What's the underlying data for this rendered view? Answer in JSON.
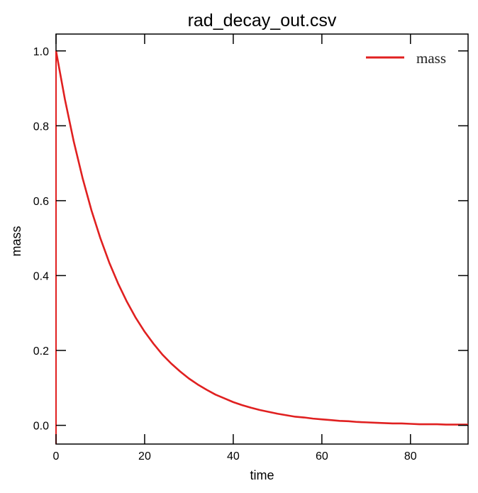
{
  "chart_data": {
    "type": "line",
    "title": "rad_decay_out.csv",
    "xlabel": "time",
    "ylabel": "mass",
    "xlim": [
      0,
      93
    ],
    "ylim": [
      -0.05,
      1.045
    ],
    "xticks": [
      0,
      20,
      40,
      60,
      80
    ],
    "yticks": [
      0.0,
      0.2,
      0.4,
      0.6,
      0.8,
      1.0
    ],
    "xtick_labels": [
      "0",
      "20",
      "40",
      "60",
      "80"
    ],
    "ytick_labels": [
      "0.0",
      "0.2",
      "0.4",
      "0.6",
      "0.8",
      "1.0"
    ],
    "grid": false,
    "legend": {
      "position": "top-right",
      "entries": [
        "mass"
      ]
    },
    "series": [
      {
        "name": "mass",
        "color": "#e02020",
        "x": [
          0,
          2,
          4,
          6,
          8,
          10,
          12,
          14,
          16,
          18,
          20,
          22,
          24,
          26,
          28,
          30,
          32,
          34,
          36,
          38,
          40,
          42,
          44,
          46,
          48,
          50,
          52,
          54,
          56,
          58,
          60,
          62,
          64,
          66,
          68,
          70,
          72,
          74,
          76,
          78,
          80,
          82,
          84,
          86,
          88,
          90,
          92,
          93
        ],
        "y": [
          1.0,
          0.871,
          0.758,
          0.66,
          0.574,
          0.5,
          0.435,
          0.379,
          0.33,
          0.287,
          0.25,
          0.218,
          0.189,
          0.165,
          0.144,
          0.125,
          0.109,
          0.095,
          0.082,
          0.072,
          0.062,
          0.054,
          0.047,
          0.041,
          0.036,
          0.031,
          0.027,
          0.023,
          0.021,
          0.018,
          0.016,
          0.014,
          0.012,
          0.011,
          0.009,
          0.008,
          0.007,
          0.006,
          0.005,
          0.005,
          0.004,
          0.003,
          0.003,
          0.003,
          0.002,
          0.002,
          0.002,
          0.002
        ]
      }
    ]
  }
}
